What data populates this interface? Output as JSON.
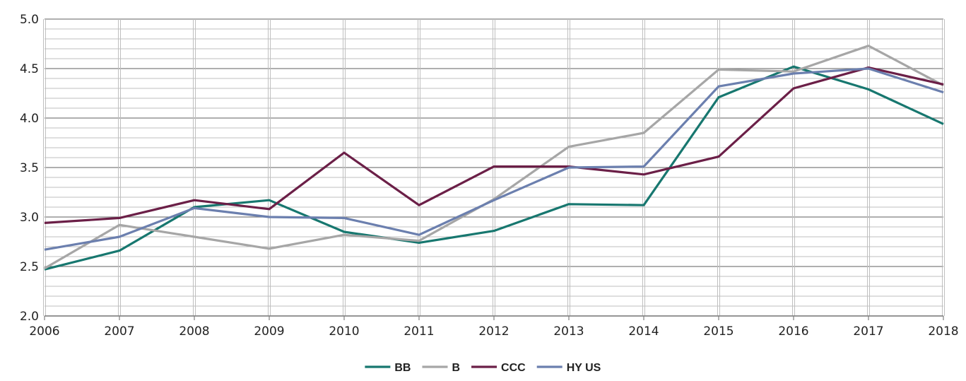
{
  "chart_data": {
    "type": "line",
    "x": [
      2006,
      2007,
      2008,
      2009,
      2010,
      2011,
      2012,
      2013,
      2014,
      2015,
      2016,
      2017,
      2018
    ],
    "xlim": [
      2006,
      2018
    ],
    "ylim": [
      2.0,
      5.0
    ],
    "y_ticks": [
      "2.0",
      "2.5",
      "3.0",
      "3.5",
      "4.0",
      "4.5",
      "5.0"
    ],
    "x_ticks": [
      "2006",
      "2007",
      "2008",
      "2009",
      "2010",
      "2011",
      "2012",
      "2013",
      "2014",
      "2015",
      "2016",
      "2017",
      "2018"
    ],
    "grid": true,
    "legend_position": "bottom",
    "series": [
      {
        "name": "BB",
        "color": "#17776f",
        "values": [
          2.47,
          2.66,
          3.1,
          3.17,
          2.85,
          2.74,
          2.86,
          3.13,
          3.12,
          4.21,
          4.52,
          4.29,
          3.94
        ]
      },
      {
        "name": "B",
        "color": "#a6a6a6",
        "values": [
          2.48,
          2.92,
          2.8,
          2.68,
          2.82,
          2.76,
          3.18,
          3.71,
          3.85,
          4.49,
          4.47,
          4.73,
          4.33
        ]
      },
      {
        "name": "CCC",
        "color": "#6b1f47",
        "values": [
          2.94,
          2.99,
          3.17,
          3.08,
          3.65,
          3.12,
          3.51,
          3.51,
          3.43,
          3.61,
          4.3,
          4.51,
          4.34
        ]
      },
      {
        "name": "HY US",
        "color": "#6b7fae",
        "values": [
          2.67,
          2.8,
          3.09,
          3.0,
          2.99,
          2.82,
          3.17,
          3.5,
          3.51,
          4.32,
          4.45,
          4.5,
          4.26
        ]
      }
    ]
  }
}
